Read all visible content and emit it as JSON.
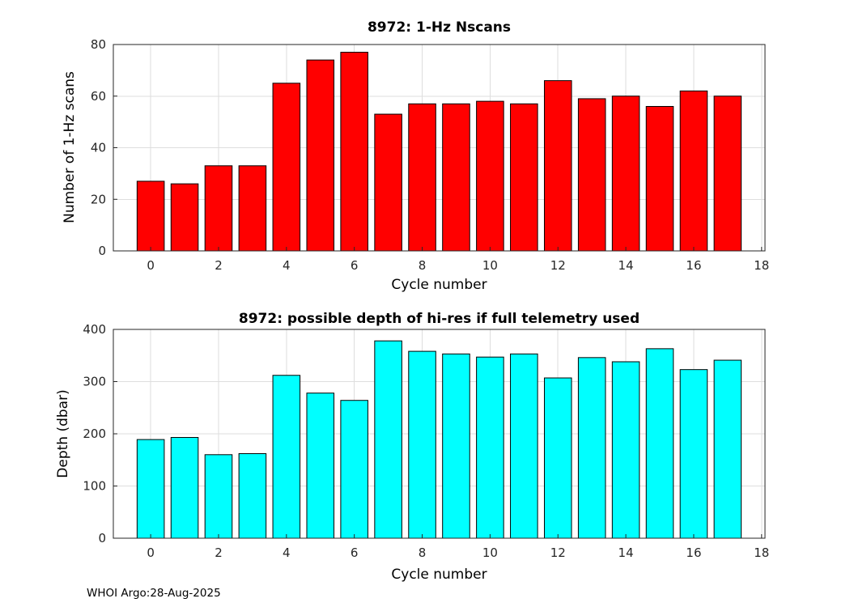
{
  "figure": {
    "footer": "WHOI Argo:28-Aug-2025"
  },
  "chart_data": [
    {
      "type": "bar",
      "title": "8972: 1-Hz Nscans",
      "xlabel": "Cycle number",
      "ylabel": "Number of 1-Hz scans",
      "categories": [
        0,
        1,
        2,
        3,
        4,
        5,
        6,
        7,
        8,
        9,
        10,
        11,
        12,
        13,
        14,
        15,
        16,
        17
      ],
      "values": [
        27,
        26,
        33,
        33,
        65,
        74,
        77,
        53,
        57,
        57,
        58,
        57,
        66,
        59,
        60,
        56,
        62,
        60
      ],
      "bar_color": "#ff0000",
      "edge_color": "#000000",
      "xlim": [
        -1.1,
        18.1
      ],
      "ylim": [
        0,
        80
      ],
      "xticks": [
        0,
        2,
        4,
        6,
        8,
        10,
        12,
        14,
        16,
        18
      ],
      "yticks": [
        0,
        20,
        40,
        60,
        80
      ],
      "bar_width": 0.8,
      "grid": true,
      "legend": "none"
    },
    {
      "type": "bar",
      "title": "8972: possible depth of hi-res if full telemetry used",
      "xlabel": "Cycle number",
      "ylabel": "Depth (dbar)",
      "categories": [
        0,
        1,
        2,
        3,
        4,
        5,
        6,
        7,
        8,
        9,
        10,
        11,
        12,
        13,
        14,
        15,
        16,
        17
      ],
      "values": [
        189,
        193,
        160,
        162,
        312,
        278,
        264,
        378,
        358,
        353,
        347,
        353,
        307,
        346,
        338,
        363,
        323,
        341
      ],
      "bar_color": "#00ffff",
      "edge_color": "#000000",
      "xlim": [
        -1.1,
        18.1
      ],
      "ylim": [
        0,
        400
      ],
      "xticks": [
        0,
        2,
        4,
        6,
        8,
        10,
        12,
        14,
        16,
        18
      ],
      "yticks": [
        0,
        100,
        200,
        300,
        400
      ],
      "bar_width": 0.8,
      "grid": true,
      "legend": "none"
    }
  ]
}
